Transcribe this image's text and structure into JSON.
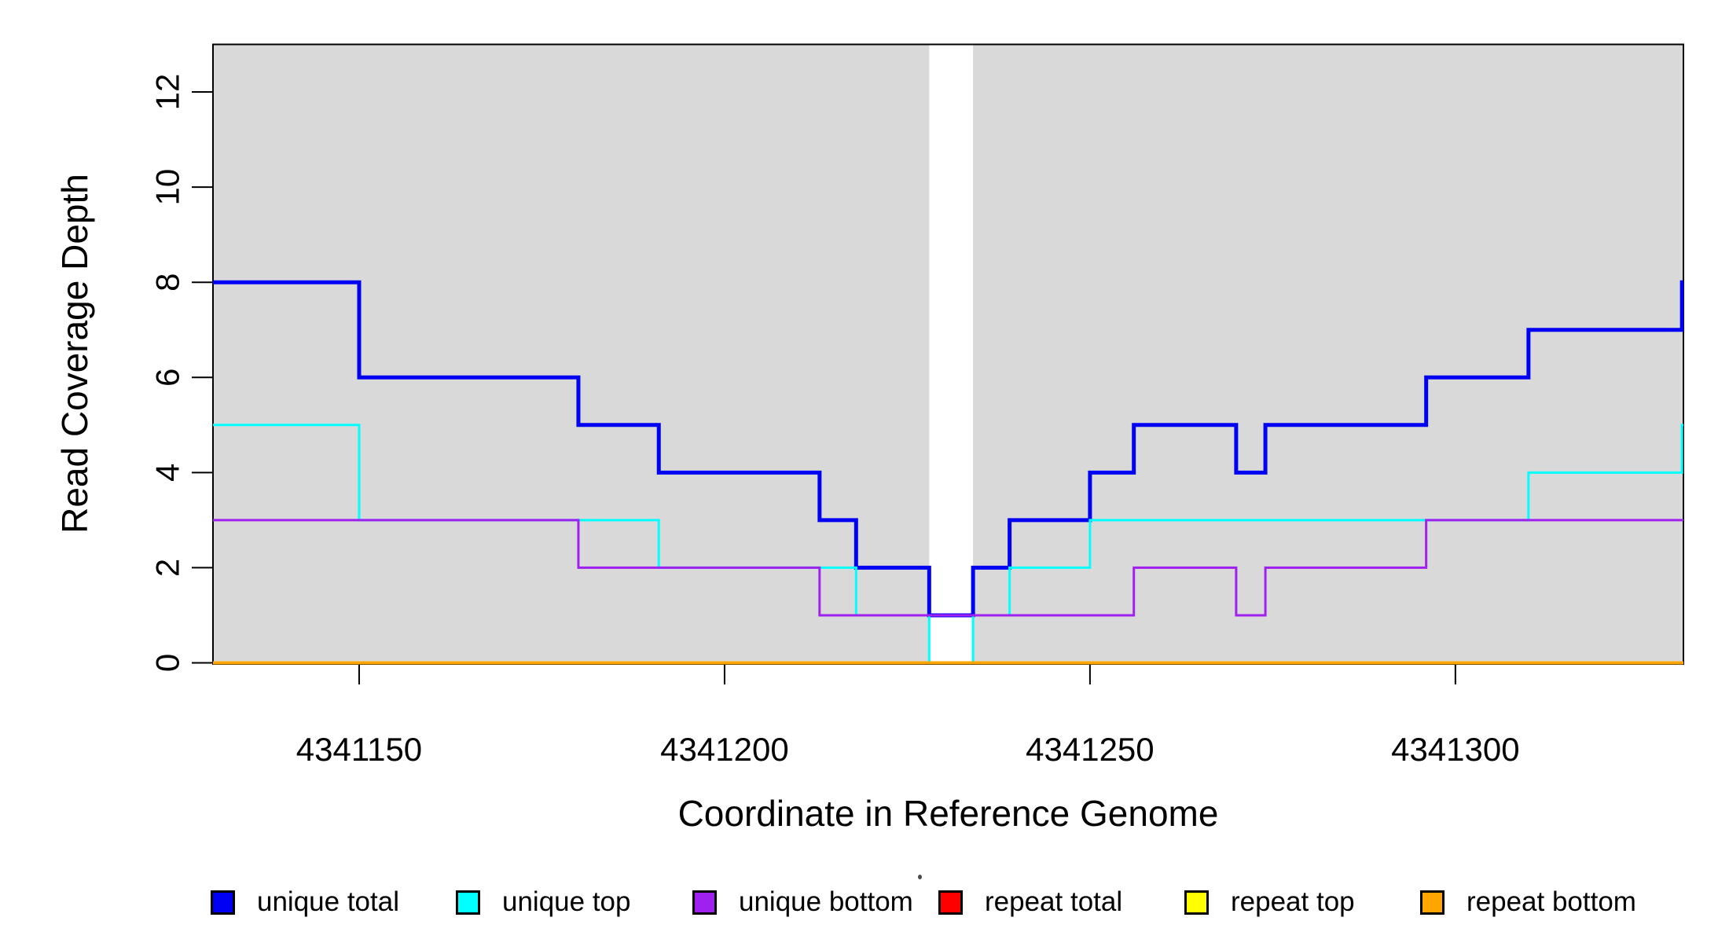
{
  "chart_data": {
    "type": "line",
    "step_style": "post",
    "title": "",
    "xlabel": "Coordinate in Reference Genome",
    "ylabel": "Read Coverage Depth",
    "xlim": [
      4341130,
      4341331.2
    ],
    "ylim": [
      0,
      13
    ],
    "xticks": [
      4341150,
      4341200,
      4341250,
      4341300
    ],
    "yticks": [
      0,
      2,
      4,
      6,
      8,
      10,
      12
    ],
    "grid": false,
    "plot_background": "#ffffff",
    "shaded_color": "#d9d9d9",
    "shaded_regions": [
      [
        4341130,
        4341228
      ],
      [
        4341234,
        4341331.2
      ]
    ],
    "uncovered_gap": [
      4341228,
      4341234
    ],
    "axis_color": "#000000",
    "series": [
      {
        "name": "unique total",
        "color": "#0000f2",
        "width": 5,
        "points": [
          [
            4341130,
            8
          ],
          [
            4341150,
            6
          ],
          [
            4341180,
            5
          ],
          [
            4341191,
            4
          ],
          [
            4341213,
            3
          ],
          [
            4341218,
            2
          ],
          [
            4341228,
            1
          ],
          [
            4341234,
            2
          ],
          [
            4341239,
            3
          ],
          [
            4341250,
            4
          ],
          [
            4341256,
            5
          ],
          [
            4341270,
            4
          ],
          [
            4341274,
            5
          ],
          [
            4341296,
            6
          ],
          [
            4341310,
            7
          ],
          [
            4341331,
            8
          ]
        ]
      },
      {
        "name": "unique top",
        "color": "#00ffff",
        "width": 3,
        "points": [
          [
            4341130,
            5
          ],
          [
            4341150,
            3
          ],
          [
            4341191,
            2
          ],
          [
            4341218,
            1
          ],
          [
            4341228,
            0
          ],
          [
            4341234,
            1
          ],
          [
            4341239,
            2
          ],
          [
            4341250,
            3
          ],
          [
            4341310,
            4
          ],
          [
            4341331,
            5
          ]
        ]
      },
      {
        "name": "unique bottom",
        "color": "#a020f0",
        "width": 3,
        "points": [
          [
            4341130,
            3
          ],
          [
            4341180,
            2
          ],
          [
            4341213,
            1
          ],
          [
            4341256,
            2
          ],
          [
            4341270,
            1
          ],
          [
            4341274,
            2
          ],
          [
            4341296,
            3
          ]
        ]
      },
      {
        "name": "repeat total",
        "color": "#ff0000",
        "width": 3,
        "points": [
          [
            4341130,
            0
          ]
        ]
      },
      {
        "name": "repeat top",
        "color": "#ffff00",
        "width": 3,
        "points": [
          [
            4341130,
            0
          ]
        ]
      },
      {
        "name": "repeat bottom",
        "color": "#ffa500",
        "width": 4,
        "points": [
          [
            4341130,
            0
          ]
        ]
      }
    ],
    "legend": {
      "position": "bottom",
      "items": [
        {
          "label": "unique total",
          "color": "#0000f2"
        },
        {
          "label": "unique top",
          "color": "#00ffff"
        },
        {
          "label": "unique bottom",
          "color": "#a020f0"
        },
        {
          "label": "repeat total",
          "color": "#ff0000"
        },
        {
          "label": "repeat top",
          "color": "#ffff00"
        },
        {
          "label": "repeat bottom",
          "color": "#ffa500"
        }
      ]
    }
  }
}
